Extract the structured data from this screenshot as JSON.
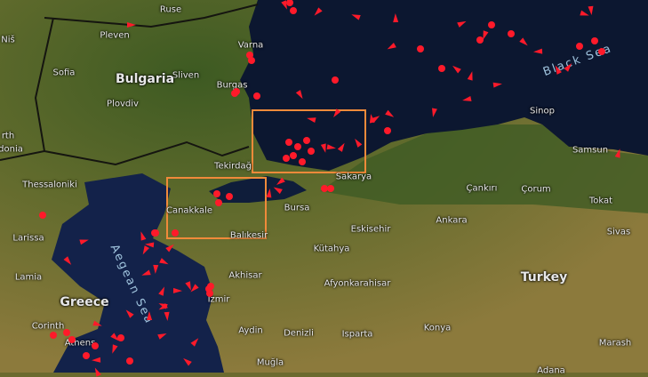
{
  "map": {
    "colors": {
      "sea": "#0e1a33",
      "land": "#6d6b30",
      "land_green": "#3f5a22",
      "ship": "#ff1a2a",
      "highlight_box": "#f08a3a",
      "border": "#1a1a12"
    },
    "ship_icons": [
      "ship-arrow-icon",
      "anchored-ship-dot-icon"
    ],
    "countries": [
      "Bulgaria",
      "Greece",
      "Turkey"
    ],
    "seas": [
      "Black Sea",
      "Aegean Sea"
    ],
    "cities": [
      "Ruse",
      "Niš",
      "Pleven",
      "Varna",
      "Sofia",
      "Sliven",
      "Burgas",
      "Plovdiv",
      "rth",
      "donia",
      "Tekirdağ",
      "Thessaloniki",
      "Canakkale",
      "Balıkesir",
      "Bursa",
      "Sakarya",
      "Eskisehir",
      "Sinop",
      "Samsun",
      "Çankırı",
      "Çorum",
      "Tokat",
      "Ankara",
      "Kütahya",
      "Sivas",
      "Larissa",
      "Lamia",
      "Akhisar",
      "Afyonkarahisar",
      "Izmir",
      "Corinth",
      "Athens",
      "Aydin",
      "Denizli",
      "Isparta",
      "Konya",
      "Muğla",
      "Marash",
      "Adana"
    ]
  }
}
